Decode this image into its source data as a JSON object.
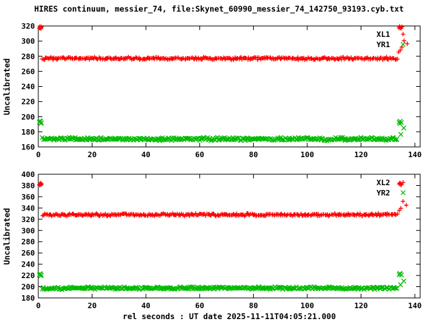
{
  "figure": {
    "title": "HIRES continuum, messier_74, file:Skynet_60990_messier_74_142750_93193.cyb.txt",
    "xlabel": "rel seconds : UT date 2025-11-11T04:05:21.000",
    "background": "#ffffff"
  },
  "chart_data": [
    {
      "type": "scatter",
      "ylabel": "Uncalibrated",
      "xlim": [
        0,
        142
      ],
      "ylim": [
        160,
        320
      ],
      "xticks": [
        0,
        20,
        40,
        60,
        80,
        100,
        120,
        140
      ],
      "yticks": [
        160,
        180,
        200,
        220,
        240,
        260,
        280,
        300,
        320
      ],
      "grid": false,
      "legend_position": "top-right",
      "series": [
        {
          "name": "XL1",
          "marker": "plus",
          "color": "#ff0000",
          "band": {
            "x_start": 1.6,
            "x_end": 133.4,
            "y_center": 277,
            "y_spread": 2.2,
            "count": 340
          },
          "points": [
            [
              0.4,
              317.0
            ],
            [
              0.7,
              318.2
            ],
            [
              1.0,
              316.5
            ],
            [
              1.2,
              318.8
            ],
            [
              0.6,
              319.5
            ],
            [
              0.9,
              317.6
            ],
            [
              134.1,
              317.2
            ],
            [
              134.5,
              318.4
            ],
            [
              134.9,
              316.8
            ],
            [
              135.2,
              318.9
            ],
            [
              134.3,
              319.3
            ],
            [
              134.7,
              317.8
            ],
            [
              134.0,
              285.5
            ],
            [
              134.6,
              288.0
            ],
            [
              135.2,
              292.0
            ],
            [
              136.0,
              300.5
            ],
            [
              137.2,
              296.5
            ]
          ]
        },
        {
          "name": "YR1",
          "marker": "cross",
          "color": "#00bb00",
          "band": {
            "x_start": 1.6,
            "x_end": 133.4,
            "y_center": 170.5,
            "y_spread": 2.4,
            "count": 340
          },
          "points": [
            [
              0.4,
              192.5
            ],
            [
              0.8,
              193.8
            ],
            [
              1.1,
              192.0
            ],
            [
              0.6,
              194.5
            ],
            [
              1.0,
              191.2
            ],
            [
              134.2,
              192.8
            ],
            [
              134.6,
              194.0
            ],
            [
              135.0,
              192.2
            ],
            [
              134.4,
              190.8
            ],
            [
              135.9,
              185.0
            ],
            [
              134.8,
              176.5
            ]
          ]
        }
      ]
    },
    {
      "type": "scatter",
      "ylabel": "Uncalibrated",
      "xlim": [
        0,
        142
      ],
      "ylim": [
        180,
        400
      ],
      "xticks": [
        0,
        20,
        40,
        60,
        80,
        100,
        120,
        140
      ],
      "yticks": [
        180,
        200,
        220,
        240,
        260,
        280,
        300,
        320,
        340,
        360,
        380,
        400
      ],
      "grid": false,
      "legend_position": "top-right",
      "series": [
        {
          "name": "XL2",
          "marker": "plus",
          "color": "#ff0000",
          "band": {
            "x_start": 1.6,
            "x_end": 133.4,
            "y_center": 328,
            "y_spread": 2.8,
            "count": 340
          },
          "points": [
            [
              0.4,
              382.0
            ],
            [
              0.7,
              383.5
            ],
            [
              1.0,
              381.5
            ],
            [
              0.8,
              384.5
            ],
            [
              0.5,
              380.5
            ],
            [
              1.2,
              383.0
            ],
            [
              134.2,
              382.5
            ],
            [
              134.6,
              383.8
            ],
            [
              135.0,
              381.8
            ],
            [
              134.4,
              384.6
            ],
            [
              134.8,
              380.9
            ],
            [
              134.2,
              335.5
            ],
            [
              134.8,
              339.5
            ],
            [
              135.6,
              352.0
            ],
            [
              136.8,
              345.0
            ]
          ]
        },
        {
          "name": "YR2",
          "marker": "cross",
          "color": "#00bb00",
          "band": {
            "x_start": 1.6,
            "x_end": 133.4,
            "y_center": 197.5,
            "y_spread": 2.6,
            "count": 340
          },
          "points": [
            [
              0.4,
              221.0
            ],
            [
              0.8,
              222.5
            ],
            [
              1.1,
              220.5
            ],
            [
              0.6,
              223.2
            ],
            [
              1.0,
              219.8
            ],
            [
              134.2,
              221.5
            ],
            [
              134.6,
              222.8
            ],
            [
              135.0,
              220.8
            ],
            [
              134.4,
              223.5
            ],
            [
              135.9,
              210.0
            ],
            [
              134.7,
              203.5
            ]
          ]
        }
      ]
    }
  ]
}
